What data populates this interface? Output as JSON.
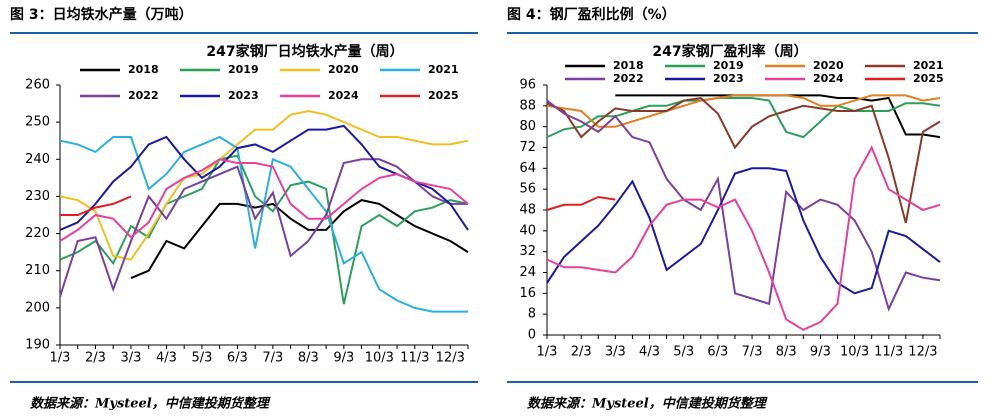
{
  "chart_data": [
    {
      "type": "line",
      "figure_title": "图 3：日均铁水产量（万吨）",
      "title": "247家钢厂日均铁水产量（周）",
      "source": "数据来源：Mysteel，中信建投期货整理",
      "categories": [
        "1/3",
        null,
        "2/3",
        null,
        "3/3",
        null,
        "4/3",
        null,
        "5/3",
        null,
        "6/3",
        null,
        "7/3",
        null,
        "8/3",
        null,
        "9/3",
        null,
        "10/3",
        null,
        "11/3",
        null,
        "12/3",
        null
      ],
      "ylim": [
        190,
        260
      ],
      "yticks": [
        190,
        200,
        210,
        220,
        230,
        240,
        250,
        260
      ],
      "series": [
        {
          "name": "2018",
          "color": "#000000",
          "values": [
            null,
            null,
            null,
            null,
            208,
            210,
            218,
            216,
            222,
            228,
            228,
            227,
            228,
            224,
            221,
            221,
            226,
            229,
            228,
            225,
            222,
            220,
            218,
            215
          ]
        },
        {
          "name": "2019",
          "color": "#2ca05a",
          "values": [
            213,
            215,
            218,
            212,
            222,
            219,
            228,
            230,
            232,
            240,
            241,
            230,
            226,
            233,
            234,
            232,
            201,
            222,
            225,
            222,
            226,
            227,
            229,
            228
          ]
        },
        {
          "name": "2020",
          "color": "#f0c020",
          "values": [
            230,
            229,
            226,
            214,
            213,
            220,
            228,
            235,
            236,
            240,
            244,
            248,
            248,
            252,
            253,
            252,
            250,
            248,
            246,
            246,
            245,
            244,
            244,
            245
          ]
        },
        {
          "name": "2021",
          "color": "#29b0e0",
          "values": [
            245,
            244,
            242,
            246,
            246,
            232,
            236,
            242,
            244,
            246,
            243,
            216,
            240,
            238,
            232,
            226,
            212,
            215,
            205,
            202,
            200,
            199,
            199,
            199
          ]
        },
        {
          "name": "2022",
          "color": "#7b3fa0",
          "values": [
            203,
            218,
            219,
            205,
            218,
            230,
            224,
            232,
            234,
            236,
            238,
            224,
            231,
            214,
            218,
            225,
            239,
            240,
            240,
            238,
            234,
            230,
            228,
            228
          ]
        },
        {
          "name": "2023",
          "color": "#1a1aa0",
          "values": [
            221,
            223,
            228,
            234,
            238,
            244,
            246,
            240,
            235,
            238,
            243,
            244,
            242,
            245,
            248,
            248,
            249,
            244,
            238,
            236,
            234,
            232,
            228,
            221
          ]
        },
        {
          "name": "2024",
          "color": "#e8409a",
          "values": [
            218,
            221,
            225,
            224,
            219,
            223,
            232,
            235,
            237,
            240,
            239,
            239,
            238,
            228,
            224,
            224,
            228,
            232,
            235,
            236,
            234,
            233,
            232,
            228
          ]
        },
        {
          "name": "2025",
          "color": "#e02020",
          "values": [
            225,
            225,
            227,
            228,
            230,
            null,
            null,
            null,
            null,
            null,
            null,
            null,
            null,
            null,
            null,
            null,
            null,
            null,
            null,
            null,
            null,
            null,
            null,
            null
          ]
        }
      ]
    },
    {
      "type": "line",
      "figure_title": "图 4：钢厂盈利比例（%）",
      "title": "247家钢厂盈利率（周）",
      "source": "数据来源：Mysteel，中信建投期货整理",
      "categories": [
        "1/3",
        null,
        "2/3",
        null,
        "3/3",
        null,
        "4/3",
        null,
        "5/3",
        null,
        "6/3",
        null,
        "7/3",
        null,
        "8/3",
        null,
        "9/3",
        null,
        "10/3",
        null,
        "11/3",
        null,
        "12/3",
        null
      ],
      "ylim": [
        0,
        96
      ],
      "yticks": [
        0,
        8,
        16,
        24,
        32,
        40,
        48,
        56,
        64,
        72,
        80,
        88,
        96
      ],
      "series": [
        {
          "name": "2018",
          "color": "#000000",
          "values": [
            null,
            null,
            null,
            null,
            92,
            92,
            92,
            92,
            92,
            92,
            92,
            92,
            92,
            92,
            92,
            92,
            92,
            91,
            91,
            90,
            91,
            77,
            77,
            76
          ]
        },
        {
          "name": "2019",
          "color": "#2ca05a",
          "values": [
            76,
            79,
            80,
            84,
            84,
            86,
            88,
            88,
            90,
            90,
            91,
            91,
            91,
            90,
            78,
            76,
            82,
            88,
            86,
            86,
            86,
            89,
            89,
            88
          ]
        },
        {
          "name": "2020",
          "color": "#e08020",
          "values": [
            88,
            87,
            86,
            80,
            80,
            82,
            84,
            86,
            88,
            90,
            91,
            92,
            92,
            92,
            92,
            91,
            88,
            88,
            90,
            92,
            92,
            92,
            90,
            91
          ]
        },
        {
          "name": "2021",
          "color": "#8b3a2a",
          "values": [
            89,
            86,
            76,
            82,
            87,
            86,
            86,
            86,
            90,
            91,
            85,
            72,
            80,
            84,
            86,
            88,
            87,
            86,
            86,
            88,
            68,
            43,
            78,
            82
          ]
        },
        {
          "name": "2022",
          "color": "#7b3fa0",
          "values": [
            90,
            85,
            82,
            78,
            84,
            76,
            74,
            60,
            52,
            48,
            60,
            16,
            14,
            12,
            55,
            48,
            52,
            50,
            44,
            32,
            10,
            24,
            22,
            21
          ]
        },
        {
          "name": "2023",
          "color": "#1a1aa0",
          "values": [
            20,
            30,
            36,
            42,
            50,
            59,
            45,
            25,
            30,
            35,
            48,
            62,
            64,
            64,
            63,
            44,
            30,
            20,
            16,
            18,
            40,
            38,
            33,
            28
          ]
        },
        {
          "name": "2024",
          "color": "#e8409a",
          "values": [
            29,
            26,
            26,
            25,
            24,
            30,
            42,
            50,
            52,
            52,
            49,
            52,
            40,
            24,
            6,
            2,
            5,
            12,
            60,
            72,
            56,
            52,
            48,
            50
          ]
        },
        {
          "name": "2025",
          "color": "#e02020",
          "values": [
            48,
            50,
            50,
            53,
            52,
            null,
            null,
            null,
            null,
            null,
            null,
            null,
            null,
            null,
            null,
            null,
            null,
            null,
            null,
            null,
            null,
            null,
            null,
            null
          ]
        }
      ]
    }
  ]
}
